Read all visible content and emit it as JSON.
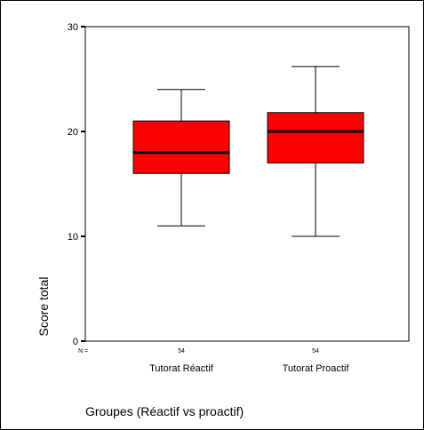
{
  "chart_data": {
    "type": "box",
    "xlabel": "Groupes (Réactif vs proactif)",
    "ylabel": "Score total",
    "ylim": [
      0,
      30
    ],
    "yticks": [
      0,
      10,
      20,
      30
    ],
    "n_label": "N =",
    "grid": false,
    "box_color": "#ff0000",
    "categories": [
      "Tutorat Réactif",
      "Tutorat Proactif"
    ],
    "boxes": [
      {
        "category": "Tutorat Réactif",
        "n": "54",
        "whisker_low": 11,
        "q1": 16,
        "median": 18,
        "q3": 21,
        "whisker_high": 24
      },
      {
        "category": "Tutorat Proactif",
        "n": "54",
        "whisker_low": 10,
        "q1": 17,
        "median": 20,
        "q3": 21.8,
        "whisker_high": 26.2
      }
    ]
  }
}
